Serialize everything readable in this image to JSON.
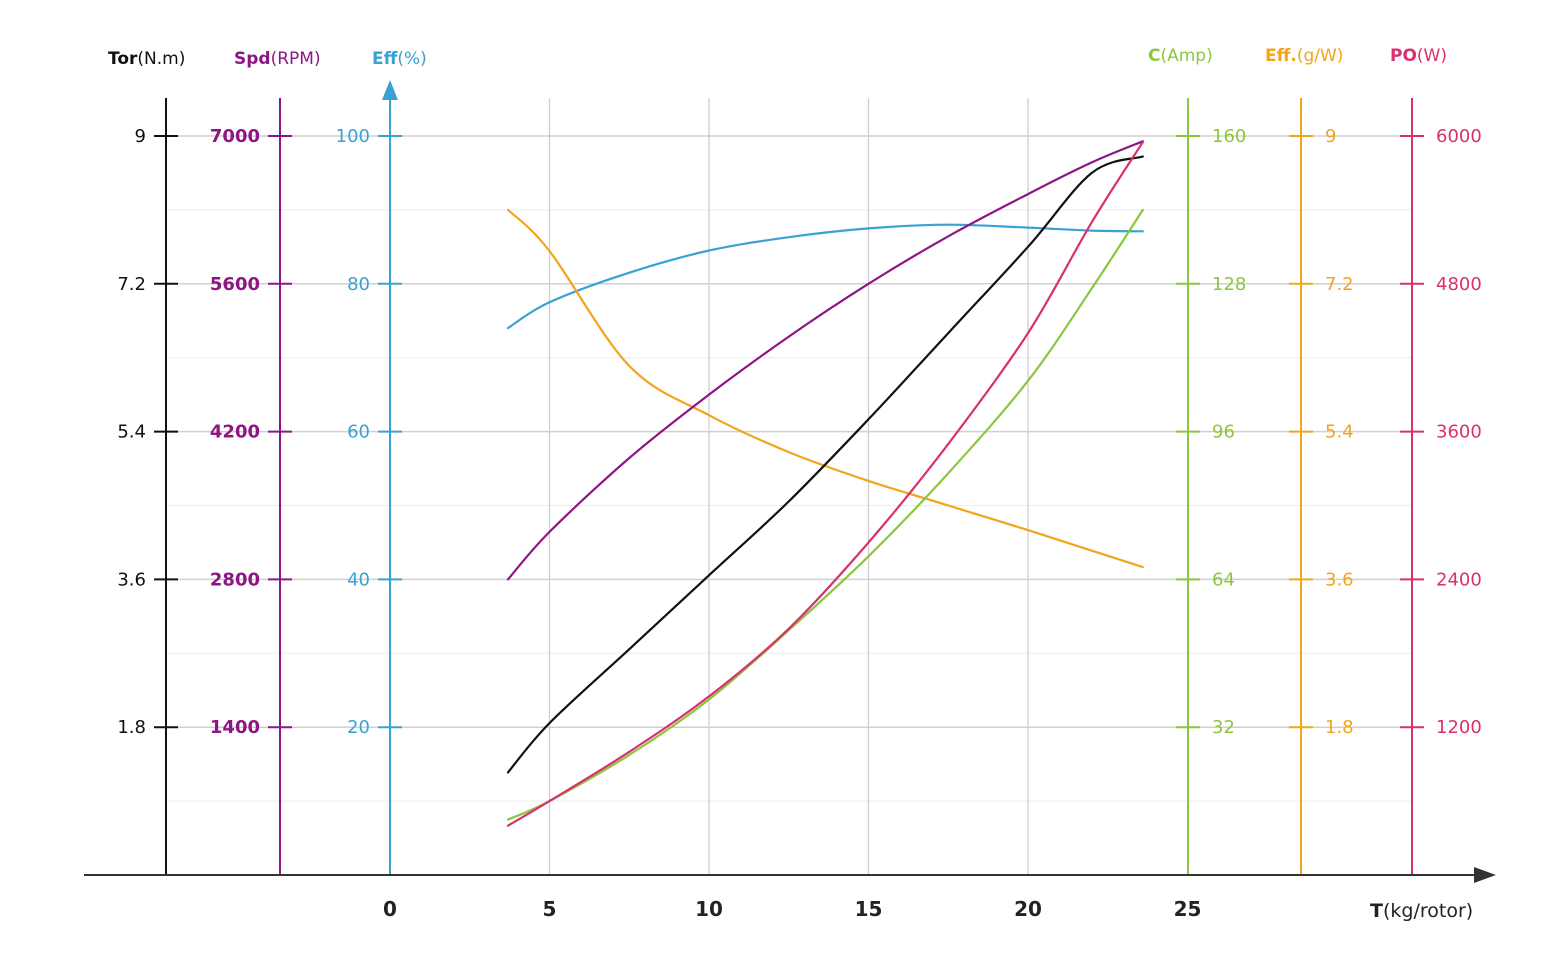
{
  "chart_data": {
    "type": "line",
    "x": [
      3.7,
      5,
      7.5,
      10,
      12.5,
      15,
      17.5,
      20,
      22,
      23.6
    ],
    "x_axis": {
      "title_bold": "T",
      "title_unit": "(kg/rotor)",
      "ticks": [
        "0",
        "5",
        "10",
        "15",
        "20",
        "25"
      ],
      "range": [
        0,
        25
      ],
      "color": "#333333"
    },
    "axes": [
      {
        "id": "tor",
        "title_bold": "Tor",
        "title_unit": "(N.m)",
        "color": "#111111",
        "label_color": "#111111",
        "min": 0,
        "max": 9,
        "ticks": [
          "1.8",
          "3.6",
          "5.4",
          "7.2",
          "9"
        ]
      },
      {
        "id": "spd",
        "title_bold": "Spd",
        "title_unit": "(RPM)",
        "color": "#8e1585",
        "label_color": "#8e1585",
        "min": 0,
        "max": 7000,
        "ticks": [
          "1400",
          "2800",
          "4200",
          "5600",
          "7000"
        ]
      },
      {
        "id": "eff",
        "title_bold": "Eff",
        "title_unit": "(%)",
        "color": "#3aa2d3",
        "label_color": "#3aa2d3",
        "min": 0,
        "max": 100,
        "ticks": [
          "20",
          "40",
          "60",
          "80",
          "100"
        ]
      },
      {
        "id": "amp",
        "title_bold": "C",
        "title_unit": "(Amp)",
        "color": "#8cc63f",
        "label_color": "#8cc63f",
        "min": 0,
        "max": 160,
        "ticks": [
          "32",
          "64",
          "96",
          "128",
          "160"
        ]
      },
      {
        "id": "gw",
        "title_bold": "Eff.",
        "title_unit": "(g/W)",
        "color": "#f2a51b",
        "label_color": "#f2a51b",
        "min": 0,
        "max": 9,
        "ticks": [
          "1.8",
          "3.6",
          "5.4",
          "7.2",
          "9"
        ]
      },
      {
        "id": "po",
        "title_bold": "PO",
        "title_unit": "(W)",
        "color": "#d9306f",
        "label_color": "#d9306f",
        "min": 0,
        "max": 6000,
        "ticks": [
          "1200",
          "2400",
          "3600",
          "4800",
          "6000"
        ]
      }
    ],
    "series": [
      {
        "axis": "eff",
        "color": "#3aa2d3",
        "values": [
          74,
          77.5,
          81.5,
          84.5,
          86.3,
          87.5,
          88,
          87.6,
          87.2,
          87.1
        ]
      },
      {
        "axis": "gw",
        "color": "#f2a51b",
        "values": [
          8.1,
          7.6,
          6.2,
          5.6,
          5.15,
          4.8,
          4.5,
          4.2,
          3.95,
          3.75
        ]
      },
      {
        "axis": "spd",
        "color": "#8e1585",
        "values": [
          2800,
          3250,
          3950,
          4550,
          5100,
          5600,
          6050,
          6450,
          6750,
          6950
        ]
      },
      {
        "axis": "tor",
        "color": "#111111",
        "values": [
          1.25,
          1.85,
          2.75,
          3.65,
          4.55,
          5.55,
          6.6,
          7.65,
          8.55,
          8.75
        ]
      },
      {
        "axis": "amp",
        "color": "#8cc63f",
        "values": [
          12,
          16,
          26,
          38,
          53,
          69,
          87,
          107,
          127,
          144
        ]
      },
      {
        "axis": "po",
        "color": "#d9306f",
        "values": [
          400,
          600,
          1000,
          1450,
          2000,
          2700,
          3500,
          4400,
          5300,
          5950
        ]
      }
    ]
  }
}
